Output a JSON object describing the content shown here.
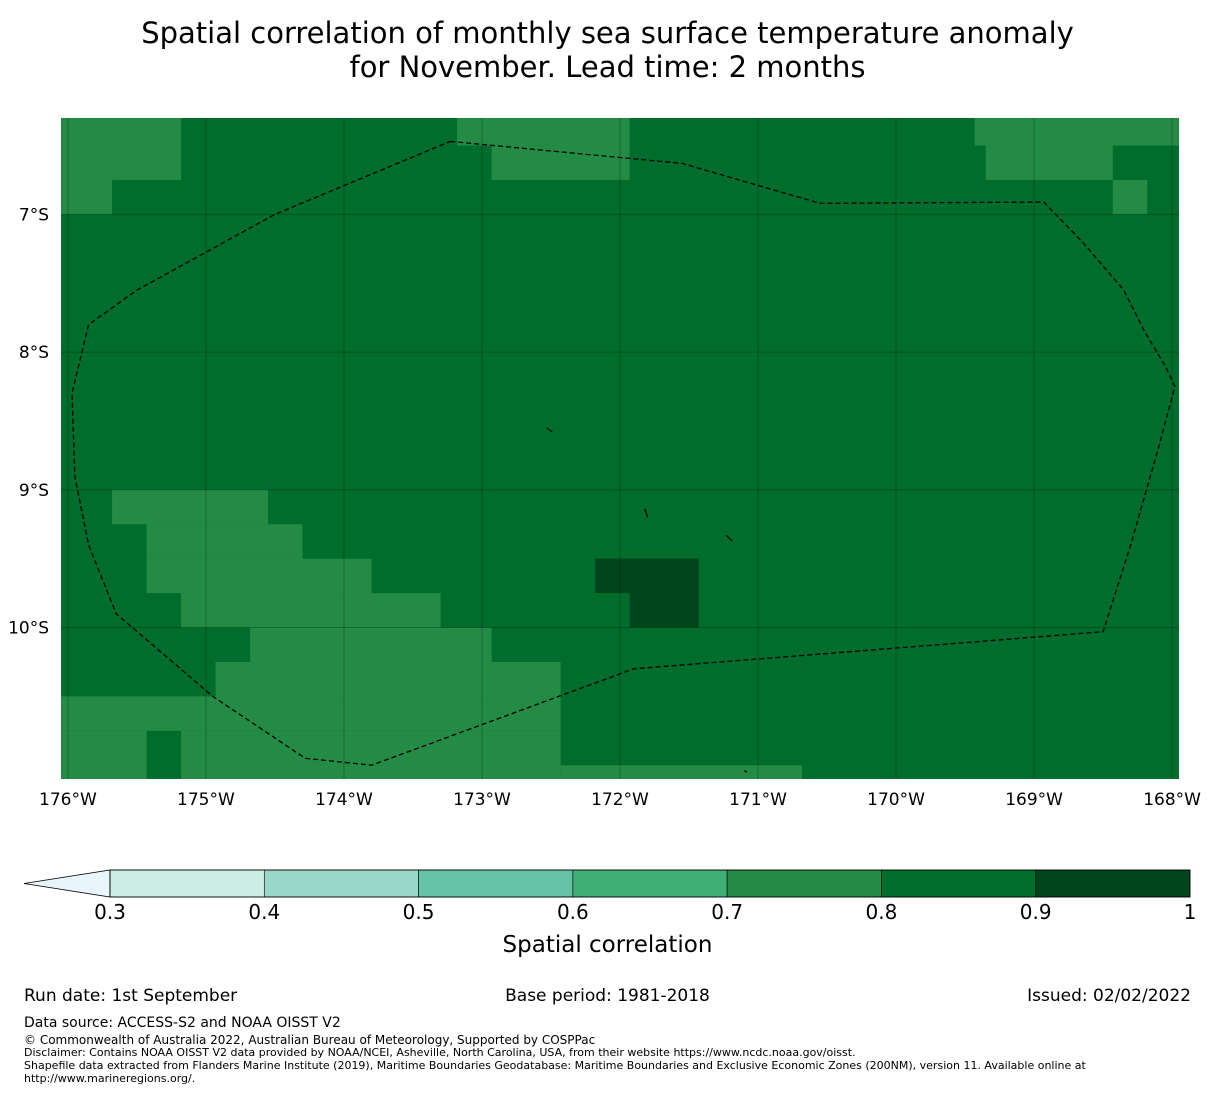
{
  "title": {
    "line1": "Spatial correlation of monthly sea surface temperature anomaly",
    "line2": "for November. Lead time: 2 months"
  },
  "map": {
    "lon_range": [
      -176.05,
      -167.95
    ],
    "lat_range": [
      -11.1,
      -6.3
    ],
    "lon_ticks": [
      {
        "value": -176,
        "label": "176°W"
      },
      {
        "value": -175,
        "label": "175°W"
      },
      {
        "value": -174,
        "label": "174°W"
      },
      {
        "value": -173,
        "label": "173°W"
      },
      {
        "value": -172,
        "label": "172°W"
      },
      {
        "value": -171,
        "label": "171°W"
      },
      {
        "value": -170,
        "label": "170°W"
      },
      {
        "value": -169,
        "label": "169°W"
      },
      {
        "value": -168,
        "label": "168°W"
      }
    ],
    "lat_ticks": [
      {
        "value": -7,
        "label": "7°S"
      },
      {
        "value": -8,
        "label": "8°S"
      },
      {
        "value": -9,
        "label": "9°S"
      },
      {
        "value": -10,
        "label": "10°S"
      }
    ],
    "background_class": "0.8-0.9",
    "regions": [
      {
        "class": "0.7-0.8",
        "lon": [
          -176.05,
          -175.18
        ],
        "lat": [
          -6.75,
          -6.3
        ]
      },
      {
        "class": "0.7-0.8",
        "lon": [
          -176.05,
          -175.68
        ],
        "lat": [
          -7.0,
          -6.75
        ]
      },
      {
        "class": "0.7-0.8",
        "lon": [
          -173.18,
          -171.93
        ],
        "lat": [
          -6.5,
          -6.3
        ]
      },
      {
        "class": "0.7-0.8",
        "lon": [
          -172.93,
          -171.93
        ],
        "lat": [
          -6.75,
          -6.5
        ]
      },
      {
        "class": "0.7-0.8",
        "lon": [
          -169.43,
          -167.95
        ],
        "lat": [
          -6.5,
          -6.3
        ]
      },
      {
        "class": "0.7-0.8",
        "lon": [
          -169.35,
          -168.43
        ],
        "lat": [
          -6.75,
          -6.5
        ]
      },
      {
        "class": "0.7-0.8",
        "lon": [
          -168.43,
          -168.18
        ],
        "lat": [
          -7.0,
          -6.75
        ]
      },
      {
        "class": "0.7-0.8",
        "lon": [
          -175.68,
          -174.55
        ],
        "lat": [
          -9.25,
          -9.0
        ]
      },
      {
        "class": "0.7-0.8",
        "lon": [
          -175.43,
          -174.3
        ],
        "lat": [
          -9.5,
          -9.25
        ]
      },
      {
        "class": "0.7-0.8",
        "lon": [
          -175.43,
          -173.8
        ],
        "lat": [
          -9.75,
          -9.5
        ]
      },
      {
        "class": "0.7-0.8",
        "lon": [
          -175.18,
          -173.3
        ],
        "lat": [
          -10.0,
          -9.75
        ]
      },
      {
        "class": "0.7-0.8",
        "lon": [
          -174.68,
          -172.93
        ],
        "lat": [
          -10.25,
          -10.0
        ]
      },
      {
        "class": "0.7-0.8",
        "lon": [
          -174.93,
          -172.43
        ],
        "lat": [
          -10.5,
          -10.25
        ]
      },
      {
        "class": "0.7-0.8",
        "lon": [
          -176.05,
          -175.18
        ],
        "lat": [
          -10.75,
          -10.5
        ]
      },
      {
        "class": "0.7-0.8",
        "lon": [
          -175.18,
          -172.43
        ],
        "lat": [
          -10.75,
          -10.5
        ]
      },
      {
        "class": "0.7-0.8",
        "lon": [
          -176.05,
          -175.43
        ],
        "lat": [
          -11.1,
          -10.75
        ]
      },
      {
        "class": "0.7-0.8",
        "lon": [
          -175.18,
          -172.43
        ],
        "lat": [
          -11.1,
          -10.75
        ]
      },
      {
        "class": "0.7-0.8",
        "lon": [
          -172.43,
          -170.68
        ],
        "lat": [
          -11.1,
          -11.0
        ]
      },
      {
        "class": "0.9-1",
        "lon": [
          -172.18,
          -171.43
        ],
        "lat": [
          -9.75,
          -9.5
        ]
      },
      {
        "class": "0.9-1",
        "lon": [
          -171.93,
          -171.43
        ],
        "lat": [
          -10.0,
          -9.75
        ]
      }
    ],
    "eez_boundary": [
      [
        -173.23,
        -6.47
      ],
      [
        -171.55,
        -6.63
      ],
      [
        -170.55,
        -6.92
      ],
      [
        -168.93,
        -6.91
      ],
      [
        -168.65,
        -7.2
      ],
      [
        -168.35,
        -7.55
      ],
      [
        -168.2,
        -7.85
      ],
      [
        -168.05,
        -8.1
      ],
      [
        -167.98,
        -8.25
      ],
      [
        -168.1,
        -8.7
      ],
      [
        -168.3,
        -9.4
      ],
      [
        -168.5,
        -10.03
      ],
      [
        -171.9,
        -10.3
      ],
      [
        -173.8,
        -11.0
      ],
      [
        -174.28,
        -10.95
      ],
      [
        -174.95,
        -10.5
      ],
      [
        -175.65,
        -9.9
      ],
      [
        -175.85,
        -9.4
      ],
      [
        -175.95,
        -8.9
      ],
      [
        -175.97,
        -8.3
      ],
      [
        -175.85,
        -7.8
      ],
      [
        -175.5,
        -7.55
      ],
      [
        -174.5,
        -7.0
      ],
      [
        -173.23,
        -6.47
      ]
    ],
    "islands": [
      [
        [
          -172.53,
          -8.55
        ],
        [
          -172.49,
          -8.58
        ]
      ],
      [
        [
          -171.82,
          -9.14
        ],
        [
          -171.8,
          -9.2
        ]
      ],
      [
        [
          -171.23,
          -9.33
        ],
        [
          -171.19,
          -9.37
        ]
      ],
      [
        [
          -171.1,
          -11.04
        ],
        [
          -171.08,
          -11.05
        ]
      ]
    ]
  },
  "colorbar": {
    "under_color": "#e8f5fa",
    "bins": [
      {
        "from": 0.3,
        "to": 0.4,
        "color": "#ccece6"
      },
      {
        "from": 0.4,
        "to": 0.5,
        "color": "#99d8c9"
      },
      {
        "from": 0.5,
        "to": 0.6,
        "color": "#66c2a4"
      },
      {
        "from": 0.6,
        "to": 0.7,
        "color": "#41ae76"
      },
      {
        "from": 0.7,
        "to": 0.8,
        "color": "#238b45"
      },
      {
        "from": 0.8,
        "to": 0.9,
        "color": "#006d2c"
      },
      {
        "from": 0.9,
        "to": 1.0,
        "color": "#00441b"
      }
    ],
    "tick_labels": [
      "0.3",
      "0.4",
      "0.5",
      "0.6",
      "0.7",
      "0.8",
      "0.9",
      "1"
    ],
    "title": "Spatial correlation"
  },
  "footer": {
    "run_date": "Run date: 1st September",
    "base_period": "Base period: 1981-2018",
    "issued": "Issued: 02/02/2022",
    "data_source": "Data source: ACCESS-S2 and NOAA OISST V2",
    "copyright": "© Commonwealth of Australia 2022, Australian Bureau of Meteorology, Supported by COSPPac",
    "disclaimer": "Disclaimer: Contains NOAA OISST V2 data provided by NOAA/NCEI, Asheville, North Carolina, USA, from their website https://www.ncdc.noaa.gov/oisst.",
    "shapefile": "Shapefile data extracted from Flanders Marine Institute (2019), Maritime Boundaries Geodatabase: Maritime Boundaries and Exclusive Economic Zones (200NM), version 11. Available online at http://www.marineregions.org/."
  }
}
